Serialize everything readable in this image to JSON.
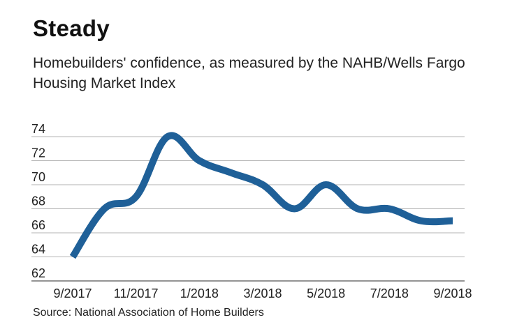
{
  "title": "Steady",
  "subtitle": "Homebuilders' confidence, as measured by the NAHB/Wells Fargo Housing Market Index",
  "source": "Source: National Association of Home Builders",
  "colors": {
    "line": "#1f6098",
    "grid": "#9a9a9a"
  },
  "chart_data": {
    "type": "line",
    "title": "Steady",
    "subtitle": "Homebuilders' confidence, as measured by the NAHB/Wells Fargo Housing Market Index",
    "xlabel": "",
    "ylabel": "",
    "x": [
      "9/2017",
      "10/2017",
      "11/2017",
      "12/2017",
      "1/2018",
      "2/2018",
      "3/2018",
      "4/2018",
      "5/2018",
      "6/2018",
      "7/2018",
      "8/2018",
      "9/2018"
    ],
    "series": [
      {
        "values": [
          64,
          68,
          69,
          74,
          72,
          71,
          70,
          68,
          70,
          68,
          68,
          67,
          67
        ]
      }
    ],
    "x_tick_labels": [
      "9/2017",
      "11/2017",
      "1/2018",
      "3/2018",
      "5/2018",
      "7/2018",
      "9/2018"
    ],
    "y_ticks": [
      62,
      64,
      66,
      68,
      70,
      72,
      74
    ],
    "ylim": [
      62,
      74
    ],
    "grid": "horizontal"
  }
}
